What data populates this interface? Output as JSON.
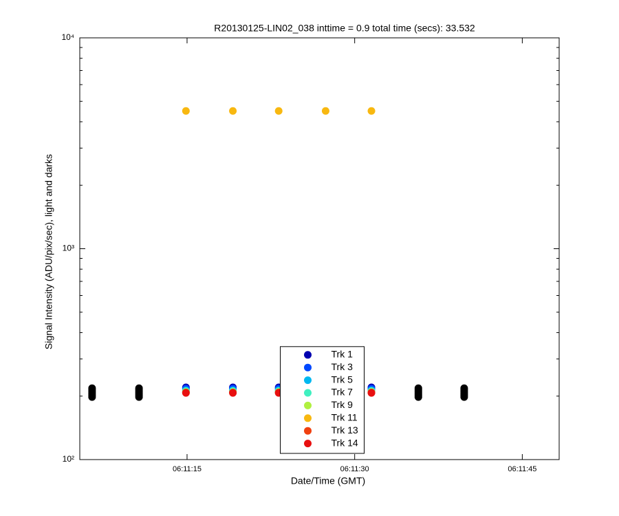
{
  "chart_data": {
    "type": "scatter",
    "title": "R20130125-LIN02_038 inttime = 0.9 total time (secs): 33.532",
    "xlabel": "Date/Time (GMT)",
    "ylabel": "Signal Intensity (ADU/pix/sec), light and darks",
    "log_y": true,
    "grid": false,
    "legend": "bottom-center",
    "xlim": [
      "06:11:05.4",
      "06:11:48.3"
    ],
    "xticks": [
      "06:11:15",
      "06:11:30",
      "06:11:45"
    ],
    "ylim": [
      100,
      10000
    ],
    "yticks": [
      {
        "value": 100,
        "label": "10²"
      },
      {
        "value": 1000,
        "label": "10³"
      },
      {
        "value": 10000,
        "label": "10⁴"
      }
    ],
    "yminorticks": [
      200,
      300,
      400,
      500,
      600,
      700,
      800,
      900,
      2000,
      3000,
      4000,
      5000,
      6000,
      7000,
      8000,
      9000
    ],
    "x": [
      "06:11:14.9",
      "06:11:19.1",
      "06:11:23.2",
      "06:11:27.4",
      "06:11:31.5"
    ],
    "series": [
      {
        "name": "Trk 1",
        "color": "#0000b0",
        "values": [
          220,
          220,
          220,
          220,
          220
        ]
      },
      {
        "name": "Trk 3",
        "color": "#0048ff",
        "values": [
          217,
          217,
          217,
          217,
          217
        ]
      },
      {
        "name": "Trk 5",
        "color": "#00b8f0",
        "values": [
          213,
          213,
          213,
          213,
          213
        ]
      },
      {
        "name": "Trk 7",
        "color": "#40f0c0",
        "values": [
          211,
          211,
          211,
          211,
          211
        ]
      },
      {
        "name": "Trk 9",
        "color": "#b0f040",
        "values": [
          209,
          209,
          209,
          209,
          209
        ]
      },
      {
        "name": "Trk 11",
        "color": "#f8b810",
        "values": [
          4500,
          4500,
          4500,
          4500,
          4500
        ]
      },
      {
        "name": "Trk 13",
        "color": "#f04010",
        "values": [
          208,
          208,
          208,
          208,
          208
        ]
      },
      {
        "name": "Trk 14",
        "color": "#e81010",
        "values": [
          207,
          207,
          207,
          207,
          207
        ]
      }
    ],
    "darks": {
      "color": "#000000",
      "x": [
        "06:11:06.5",
        "06:11:06.5",
        "06:11:06.5",
        "06:11:06.5",
        "06:11:06.5",
        "06:11:06.5",
        "06:11:10.7",
        "06:11:10.7",
        "06:11:10.7",
        "06:11:10.7",
        "06:11:10.7",
        "06:11:10.7",
        "06:11:35.7",
        "06:11:35.7",
        "06:11:35.7",
        "06:11:35.7",
        "06:11:35.7",
        "06:11:35.7",
        "06:11:39.8",
        "06:11:39.8",
        "06:11:39.8",
        "06:11:39.8",
        "06:11:39.8",
        "06:11:39.8"
      ],
      "values": [
        198,
        202,
        206,
        210,
        214,
        218,
        198,
        202,
        206,
        210,
        214,
        218,
        198,
        202,
        206,
        210,
        214,
        218,
        198,
        202,
        206,
        210,
        214,
        218
      ]
    }
  }
}
